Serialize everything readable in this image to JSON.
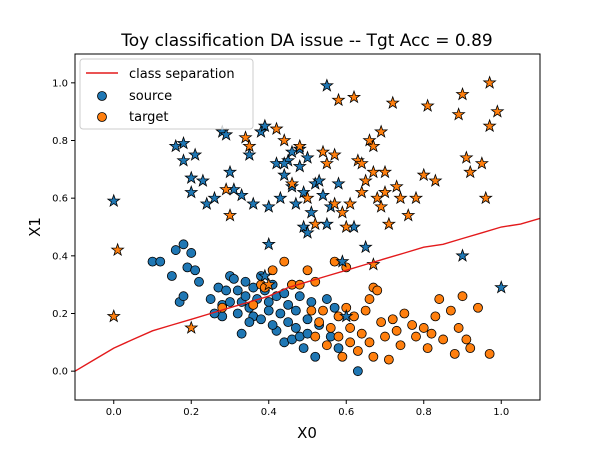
{
  "chart_data": {
    "type": "scatter",
    "title": "Toy classification DA issue -- Tgt Acc = 0.89",
    "xlabel": "X0",
    "ylabel": "X1",
    "xlim": [
      -0.1,
      1.1
    ],
    "ylim": [
      -0.1,
      1.1
    ],
    "xticks": [
      0.0,
      0.2,
      0.4,
      0.6,
      0.8,
      1.0
    ],
    "xtick_labels": [
      "0.0",
      "0.2",
      "0.4",
      "0.6",
      "0.8",
      "1.0"
    ],
    "yticks": [
      0.0,
      0.2,
      0.4,
      0.6,
      0.8,
      1.0
    ],
    "ytick_labels": [
      "0.0",
      "0.2",
      "0.4",
      "0.6",
      "0.8",
      "1.0"
    ],
    "grid": false,
    "legend_position": "top-left",
    "colors": {
      "source": "#1f77b4",
      "target": "#ff7f0e",
      "separation": "#e31a1c"
    },
    "legend": [
      {
        "label": "class separation",
        "kind": "line",
        "color": "#e31a1c"
      },
      {
        "label": "source",
        "kind": "circle",
        "color": "#1f77b4"
      },
      {
        "label": "target",
        "kind": "circle",
        "color": "#ff7f0e"
      }
    ],
    "separation_line": {
      "name": "class separation",
      "points": [
        [
          -0.1,
          0.0
        ],
        [
          -0.05,
          0.04
        ],
        [
          0.0,
          0.08
        ],
        [
          0.05,
          0.11
        ],
        [
          0.1,
          0.14
        ],
        [
          0.15,
          0.16
        ],
        [
          0.2,
          0.18
        ],
        [
          0.25,
          0.2
        ],
        [
          0.3,
          0.22
        ],
        [
          0.35,
          0.24
        ],
        [
          0.4,
          0.26
        ],
        [
          0.45,
          0.29
        ],
        [
          0.5,
          0.31
        ],
        [
          0.55,
          0.33
        ],
        [
          0.6,
          0.35
        ],
        [
          0.65,
          0.37
        ],
        [
          0.7,
          0.39
        ],
        [
          0.75,
          0.41
        ],
        [
          0.8,
          0.43
        ],
        [
          0.85,
          0.44
        ],
        [
          0.9,
          0.46
        ],
        [
          0.95,
          0.48
        ],
        [
          1.0,
          0.5
        ],
        [
          1.05,
          0.51
        ],
        [
          1.1,
          0.53
        ]
      ]
    },
    "series": [
      {
        "name": "source",
        "marker": "circle",
        "points": [
          [
            0.1,
            0.38
          ],
          [
            0.12,
            0.38
          ],
          [
            0.15,
            0.33
          ],
          [
            0.16,
            0.42
          ],
          [
            0.17,
            0.24
          ],
          [
            0.18,
            0.44
          ],
          [
            0.18,
            0.26
          ],
          [
            0.19,
            0.36
          ],
          [
            0.2,
            0.41
          ],
          [
            0.21,
            0.35
          ],
          [
            0.22,
            0.31
          ],
          [
            0.25,
            0.25
          ],
          [
            0.27,
            0.29
          ],
          [
            0.28,
            0.23
          ],
          [
            0.28,
            0.19
          ],
          [
            0.29,
            0.28
          ],
          [
            0.3,
            0.33
          ],
          [
            0.3,
            0.24
          ],
          [
            0.31,
            0.32
          ],
          [
            0.32,
            0.28
          ],
          [
            0.33,
            0.24
          ],
          [
            0.32,
            0.2
          ],
          [
            0.34,
            0.31
          ],
          [
            0.34,
            0.26
          ],
          [
            0.35,
            0.22
          ],
          [
            0.36,
            0.29
          ],
          [
            0.36,
            0.19
          ],
          [
            0.37,
            0.25
          ],
          [
            0.38,
            0.18
          ],
          [
            0.38,
            0.33
          ],
          [
            0.39,
            0.28
          ],
          [
            0.4,
            0.24
          ],
          [
            0.4,
            0.21
          ],
          [
            0.41,
            0.3
          ],
          [
            0.42,
            0.26
          ],
          [
            0.42,
            0.14
          ],
          [
            0.43,
            0.2
          ],
          [
            0.44,
            0.1
          ],
          [
            0.44,
            0.27
          ],
          [
            0.45,
            0.17
          ],
          [
            0.45,
            0.23
          ],
          [
            0.46,
            0.11
          ],
          [
            0.46,
            0.3
          ],
          [
            0.47,
            0.15
          ],
          [
            0.47,
            0.21
          ],
          [
            0.48,
            0.12
          ],
          [
            0.48,
            0.26
          ],
          [
            0.49,
            0.08
          ],
          [
            0.5,
            0.18
          ],
          [
            0.5,
            0.13
          ],
          [
            0.51,
            0.24
          ],
          [
            0.52,
            0.05
          ],
          [
            0.53,
            0.16
          ],
          [
            0.55,
            0.25
          ],
          [
            0.56,
            0.12
          ],
          [
            0.57,
            0.22
          ],
          [
            0.58,
            0.08
          ],
          [
            0.63,
            0.0
          ],
          [
            0.35,
            0.17
          ],
          [
            0.41,
            0.16
          ],
          [
            0.26,
            0.2
          ],
          [
            0.33,
            0.13
          ]
        ]
      },
      {
        "name": "target",
        "marker": "circle",
        "points": [
          [
            0.28,
            0.22
          ],
          [
            0.36,
            0.23
          ],
          [
            0.38,
            0.3
          ],
          [
            0.39,
            0.29
          ],
          [
            0.41,
            0.35
          ],
          [
            0.44,
            0.38
          ],
          [
            0.46,
            0.3
          ],
          [
            0.48,
            0.3
          ],
          [
            0.5,
            0.35
          ],
          [
            0.51,
            0.21
          ],
          [
            0.52,
            0.12
          ],
          [
            0.53,
            0.17
          ],
          [
            0.54,
            0.21
          ],
          [
            0.55,
            0.09
          ],
          [
            0.56,
            0.15
          ],
          [
            0.57,
            0.38
          ],
          [
            0.58,
            0.19
          ],
          [
            0.58,
            0.12
          ],
          [
            0.59,
            0.05
          ],
          [
            0.6,
            0.22
          ],
          [
            0.61,
            0.1
          ],
          [
            0.61,
            0.15
          ],
          [
            0.62,
            0.19
          ],
          [
            0.63,
            0.07
          ],
          [
            0.64,
            0.13
          ],
          [
            0.65,
            0.21
          ],
          [
            0.66,
            0.1
          ],
          [
            0.67,
            0.29
          ],
          [
            0.67,
            0.05
          ],
          [
            0.68,
            0.28
          ],
          [
            0.69,
            0.17
          ],
          [
            0.7,
            0.12
          ],
          [
            0.71,
            0.04
          ],
          [
            0.72,
            0.18
          ],
          [
            0.73,
            0.14
          ],
          [
            0.74,
            0.09
          ],
          [
            0.75,
            0.2
          ],
          [
            0.77,
            0.16
          ],
          [
            0.78,
            0.12
          ],
          [
            0.8,
            0.15
          ],
          [
            0.81,
            0.08
          ],
          [
            0.82,
            0.13
          ],
          [
            0.83,
            0.19
          ],
          [
            0.84,
            0.25
          ],
          [
            0.85,
            0.11
          ],
          [
            0.87,
            0.21
          ],
          [
            0.88,
            0.06
          ],
          [
            0.89,
            0.15
          ],
          [
            0.9,
            0.26
          ],
          [
            0.91,
            0.11
          ],
          [
            0.92,
            0.08
          ],
          [
            0.94,
            0.22
          ],
          [
            0.97,
            0.06
          ],
          [
            0.52,
            0.31
          ],
          [
            0.6,
            0.36
          ],
          [
            0.66,
            0.25
          ]
        ]
      },
      {
        "name": "source",
        "marker": "star",
        "points": [
          [
            0.0,
            0.59
          ],
          [
            0.16,
            0.78
          ],
          [
            0.18,
            0.79
          ],
          [
            0.18,
            0.73
          ],
          [
            0.2,
            0.67
          ],
          [
            0.2,
            0.62
          ],
          [
            0.21,
            0.75
          ],
          [
            0.23,
            0.66
          ],
          [
            0.24,
            0.58
          ],
          [
            0.26,
            0.6
          ],
          [
            0.28,
            0.83
          ],
          [
            0.29,
            0.82
          ],
          [
            0.31,
            0.63
          ],
          [
            0.33,
            0.61
          ],
          [
            0.35,
            0.75
          ],
          [
            0.38,
            0.83
          ],
          [
            0.39,
            0.85
          ],
          [
            0.39,
            0.33
          ],
          [
            0.4,
            0.57
          ],
          [
            0.4,
            0.44
          ],
          [
            0.42,
            0.72
          ],
          [
            0.43,
            0.6
          ],
          [
            0.44,
            0.68
          ],
          [
            0.45,
            0.73
          ],
          [
            0.46,
            0.64
          ],
          [
            0.47,
            0.58
          ],
          [
            0.48,
            0.71
          ],
          [
            0.49,
            0.62
          ],
          [
            0.49,
            0.5
          ],
          [
            0.5,
            0.48
          ],
          [
            0.51,
            0.55
          ],
          [
            0.52,
            0.65
          ],
          [
            0.53,
            0.66
          ],
          [
            0.54,
            0.61
          ],
          [
            0.55,
            0.51
          ],
          [
            0.55,
            0.99
          ],
          [
            0.56,
            0.57
          ],
          [
            0.58,
            0.65
          ],
          [
            0.59,
            0.38
          ],
          [
            0.6,
            0.19
          ],
          [
            0.62,
            0.5
          ],
          [
            0.65,
            0.43
          ],
          [
            0.9,
            0.4
          ],
          [
            1.0,
            0.29
          ],
          [
            0.44,
            0.72
          ],
          [
            0.46,
            0.76
          ],
          [
            0.48,
            0.77
          ],
          [
            0.5,
            0.74
          ],
          [
            0.36,
            0.58
          ],
          [
            0.3,
            0.69
          ]
        ]
      },
      {
        "name": "target",
        "marker": "star",
        "points": [
          [
            0.0,
            0.19
          ],
          [
            0.01,
            0.42
          ],
          [
            0.2,
            0.15
          ],
          [
            0.29,
            0.63
          ],
          [
            0.3,
            0.54
          ],
          [
            0.34,
            0.81
          ],
          [
            0.35,
            0.78
          ],
          [
            0.4,
            0.3
          ],
          [
            0.42,
            0.84
          ],
          [
            0.44,
            0.8
          ],
          [
            0.46,
            0.65
          ],
          [
            0.48,
            0.78
          ],
          [
            0.5,
            0.6
          ],
          [
            0.52,
            0.51
          ],
          [
            0.54,
            0.76
          ],
          [
            0.55,
            0.72
          ],
          [
            0.57,
            0.58
          ],
          [
            0.57,
            0.75
          ],
          [
            0.58,
            0.94
          ],
          [
            0.59,
            0.55
          ],
          [
            0.6,
            0.5
          ],
          [
            0.61,
            0.58
          ],
          [
            0.62,
            0.95
          ],
          [
            0.63,
            0.73
          ],
          [
            0.64,
            0.62
          ],
          [
            0.65,
            0.66
          ],
          [
            0.66,
            0.8
          ],
          [
            0.67,
            0.78
          ],
          [
            0.67,
            0.69
          ],
          [
            0.68,
            0.6
          ],
          [
            0.69,
            0.57
          ],
          [
            0.69,
            0.83
          ],
          [
            0.7,
            0.69
          ],
          [
            0.71,
            0.51
          ],
          [
            0.72,
            0.93
          ],
          [
            0.73,
            0.64
          ],
          [
            0.74,
            0.6
          ],
          [
            0.76,
            0.54
          ],
          [
            0.78,
            0.6
          ],
          [
            0.8,
            0.68
          ],
          [
            0.81,
            0.92
          ],
          [
            0.83,
            0.66
          ],
          [
            0.89,
            0.89
          ],
          [
            0.9,
            0.96
          ],
          [
            0.91,
            0.74
          ],
          [
            0.92,
            0.69
          ],
          [
            0.95,
            0.72
          ],
          [
            0.96,
            0.6
          ],
          [
            0.97,
            0.85
          ],
          [
            0.97,
            1.0
          ],
          [
            0.99,
            0.9
          ],
          [
            0.67,
            0.37
          ],
          [
            0.64,
            0.72
          ],
          [
            0.7,
            0.62
          ]
        ]
      }
    ]
  }
}
